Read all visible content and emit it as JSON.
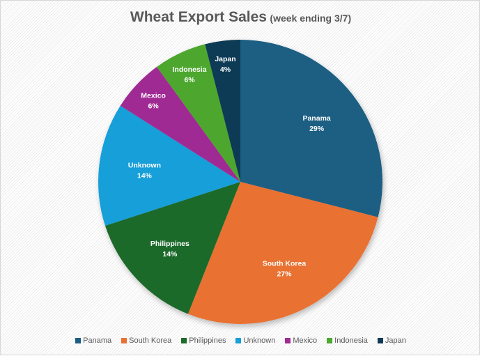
{
  "title": {
    "main": "Wheat Export Sales",
    "sub": "(week ending 3/7)"
  },
  "chart_data": {
    "type": "pie",
    "title": "Wheat Export Sales (week ending 3/7)",
    "categories": [
      "Panama",
      "South Korea",
      "Philippines",
      "Unknown",
      "Mexico",
      "Indonesia",
      "Japan"
    ],
    "values": [
      29,
      27,
      14,
      14,
      6,
      6,
      4
    ],
    "value_labels": [
      "29%",
      "27%",
      "14%",
      "14%",
      "6%",
      "6%",
      "4%"
    ],
    "colors": [
      "#1a5e83",
      "#e97132",
      "#1d6b29",
      "#169fd8",
      "#a02b93",
      "#4ea72e",
      "#0e3a55"
    ],
    "start_angle_deg": 0,
    "direction": "clockwise",
    "legend_position": "bottom",
    "data_labels": "category and percentage inside slices"
  },
  "legend": {
    "items": [
      {
        "label": "Panama",
        "color": "#1a5e83"
      },
      {
        "label": "South Korea",
        "color": "#e97132"
      },
      {
        "label": "Philippines",
        "color": "#1d6b29"
      },
      {
        "label": "Unknown",
        "color": "#169fd8"
      },
      {
        "label": "Mexico",
        "color": "#a02b93"
      },
      {
        "label": "Indonesia",
        "color": "#4ea72e"
      },
      {
        "label": "Japan",
        "color": "#0e3a55"
      }
    ]
  }
}
